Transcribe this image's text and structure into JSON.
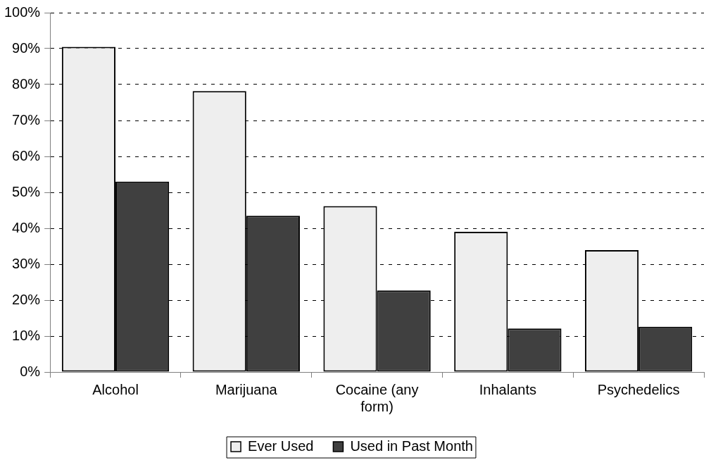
{
  "chart_data": {
    "type": "bar",
    "categories": [
      "Alcohol",
      "Marijuana",
      "Cocaine (any form)",
      "Inhalants",
      "Psychedelics"
    ],
    "series": [
      {
        "name": "Ever Used",
        "color": "#eeeeee",
        "values": [
          90.5,
          78.2,
          46.2,
          39.0,
          33.9
        ]
      },
      {
        "name": "Used in Past Month",
        "color": "#404040",
        "values": [
          53.0,
          43.5,
          22.7,
          12.1,
          12.6
        ]
      }
    ],
    "ylim": [
      0,
      100
    ],
    "yticks": [
      {
        "value": 0,
        "label": "0%"
      },
      {
        "value": 10,
        "label": "10%"
      },
      {
        "value": 20,
        "label": "20%"
      },
      {
        "value": 30,
        "label": "30%"
      },
      {
        "value": 40,
        "label": "40%"
      },
      {
        "value": 50,
        "label": "50%"
      },
      {
        "value": 60,
        "label": "60%"
      },
      {
        "value": 70,
        "label": "70%"
      },
      {
        "value": 80,
        "label": "80%"
      },
      {
        "value": 90,
        "label": "90%"
      },
      {
        "value": 100,
        "label": "100%"
      }
    ],
    "grid": "y",
    "legend": "bottom"
  }
}
